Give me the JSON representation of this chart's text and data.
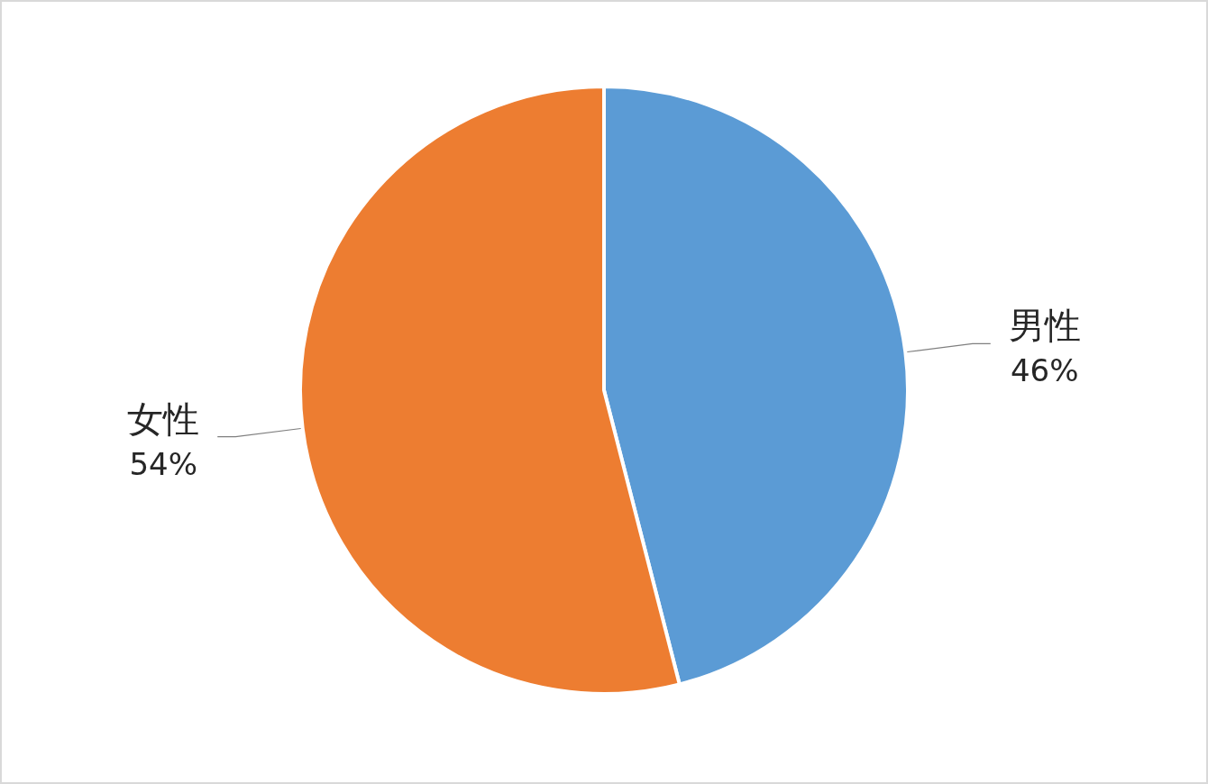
{
  "chart_data": {
    "type": "pie",
    "categories": [
      "男性",
      "女性"
    ],
    "values": [
      46,
      54
    ],
    "colors": [
      "#5b9bd5",
      "#ed7d31"
    ],
    "value_labels": [
      "46%",
      "54%"
    ]
  }
}
